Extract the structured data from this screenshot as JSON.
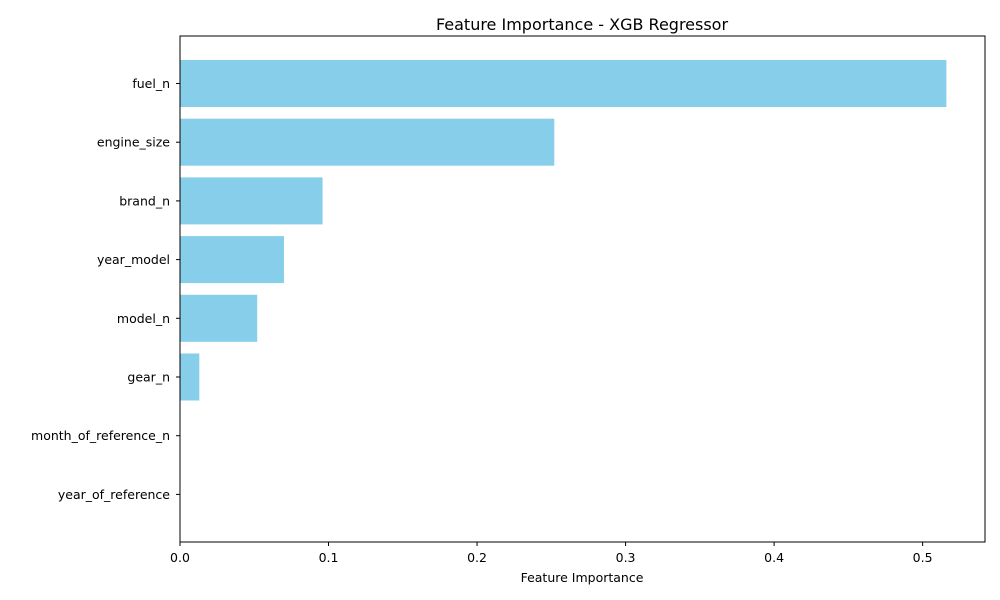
{
  "chart_data": {
    "type": "bar",
    "orientation": "horizontal",
    "title": "Feature Importance - XGB Regressor",
    "xlabel": "Feature Importance",
    "ylabel": "",
    "categories": [
      "fuel_n",
      "engine_size",
      "brand_n",
      "year_model",
      "model_n",
      "gear_n",
      "month_of_reference_n",
      "year_of_reference"
    ],
    "values": [
      0.516,
      0.252,
      0.096,
      0.07,
      0.052,
      0.013,
      0.0,
      0.0
    ],
    "xlim": [
      0,
      0.542
    ],
    "xticks": [
      0.0,
      0.1,
      0.2,
      0.3,
      0.4,
      0.5
    ],
    "xtick_labels": [
      "0.0",
      "0.1",
      "0.2",
      "0.3",
      "0.4",
      "0.5"
    ],
    "grid": false,
    "bar_color": "#87CEEB"
  }
}
